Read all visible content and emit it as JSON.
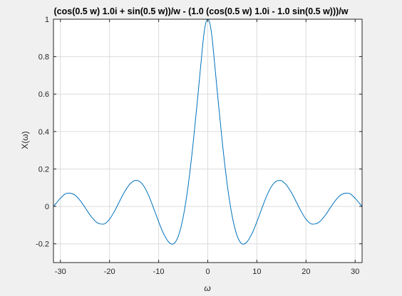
{
  "chart_data": {
    "type": "line",
    "title": "(cos(0.5 w) 1.0i + sin(0.5 w))/w - (1.0 (cos(0.5 w) 1.0i - 1.0 sin(0.5 w)))/w",
    "xlabel": "ω",
    "ylabel": "X(ω)",
    "xlim": [
      -31.4159,
      31.4159
    ],
    "ylim": [
      -0.3,
      1
    ],
    "xticks": [
      -30,
      -20,
      -10,
      0,
      10,
      20,
      30
    ],
    "yticks": [
      -0.2,
      0,
      0.2,
      0.4,
      0.6,
      0.8,
      1
    ],
    "ytick_labels": [
      "-0.2",
      "0",
      "0.2",
      "0.4",
      "0.6",
      "0.8",
      "1"
    ],
    "grid": true,
    "line_color": "#0072bd",
    "series": [
      {
        "x": [
          -31.4,
          -30,
          -29,
          -28.5,
          -28,
          -27,
          -26,
          -25,
          -24,
          -23,
          -22.5,
          -22,
          -21,
          -20,
          -19,
          -18,
          -17,
          -16,
          -15.5,
          -15,
          -14,
          -13,
          -12,
          -11,
          -10,
          -9.5,
          -9,
          -8,
          -7,
          -6,
          -5,
          -4,
          -3,
          -2,
          -1,
          -0.5,
          0,
          0.5,
          1,
          2,
          3,
          4,
          5,
          6,
          7,
          8,
          9,
          9.5,
          10,
          11,
          12,
          13,
          14,
          15,
          15.5,
          16,
          17,
          18,
          19,
          20,
          21,
          22,
          22.5,
          23,
          24,
          25,
          26,
          27,
          28,
          28.5,
          29,
          30,
          31.4
        ],
        "y": [
          0,
          0.0433,
          0.067,
          0.07,
          0.0705,
          0.0599,
          0.0317,
          -0.0053,
          -0.0447,
          -0.0764,
          -0.087,
          -0.093,
          -0.093,
          -0.0686,
          -0.0261,
          0.025,
          0.0752,
          0.1151,
          0.127,
          0.137,
          0.1353,
          0.1076,
          0.0561,
          -0.0114,
          -0.0822,
          -0.1155,
          -0.1452,
          -0.1892,
          -0.2005,
          -0.159,
          -0.0562,
          0.1094,
          0.3325,
          0.5954,
          0.8713,
          0.9689,
          1.0,
          0.9689,
          0.8713,
          0.5954,
          0.3325,
          0.1094,
          -0.0562,
          -0.159,
          -0.2005,
          -0.1892,
          -0.1452,
          -0.1155,
          -0.0822,
          -0.0114,
          0.0561,
          0.1076,
          0.1353,
          0.137,
          0.127,
          0.1151,
          0.0752,
          0.025,
          -0.0261,
          -0.0686,
          -0.093,
          -0.093,
          -0.087,
          -0.0764,
          -0.0447,
          -0.0053,
          0.0317,
          0.0599,
          0.0705,
          0.07,
          0.067,
          0.0433,
          0
        ]
      }
    ]
  }
}
